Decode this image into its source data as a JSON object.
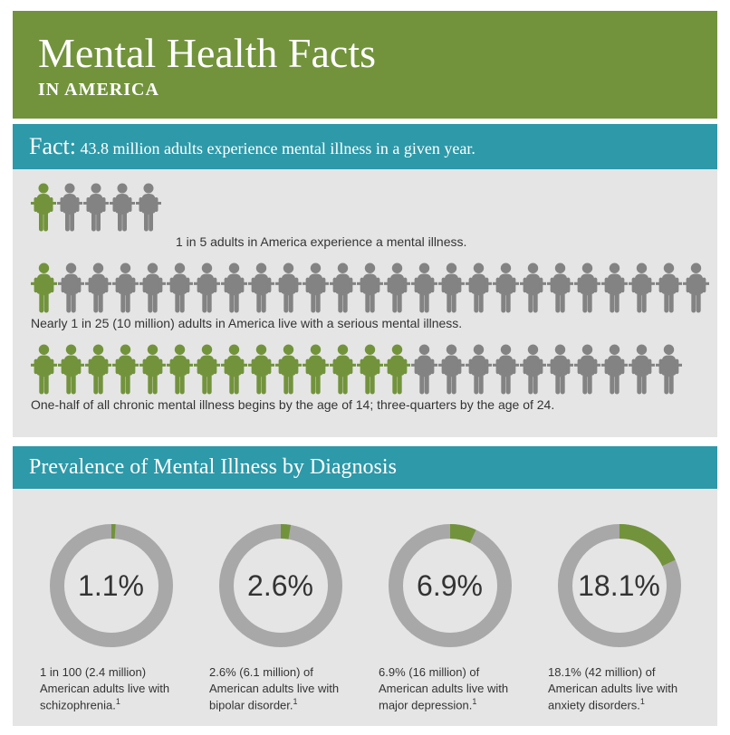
{
  "colors": {
    "green_header": "#72933c",
    "teal": "#2d99a9",
    "gray_panel": "#e5e5e5",
    "person_highlight": "#72933c",
    "person_muted": "#838383",
    "donut_track": "#a8a8a8",
    "donut_fill": "#72933c",
    "text_dark": "#333333",
    "white": "#ffffff"
  },
  "header": {
    "title": "Mental Health Facts",
    "subtitle": "IN AMERICA"
  },
  "fact_bar": {
    "label": "Fact:",
    "text": "43.8 million adults experience mental illness in a given year."
  },
  "rows": [
    {
      "total": 5,
      "highlighted": 1,
      "caption": "1 in 5 adults in America experience a mental illness.",
      "caption_indent": true
    },
    {
      "total": 25,
      "highlighted": 1,
      "caption": "Nearly 1 in 25 (10 million) adults in America live with a serious mental illness.",
      "caption_indent": false
    },
    {
      "total": 24,
      "highlighted": 14,
      "caption": "One-half of all chronic mental illness begins by the age of 14; three-quarters by the age of 24.",
      "caption_indent": false
    }
  ],
  "prevalence": {
    "heading": "Prevalence of Mental Illness by Diagnosis",
    "donut_track_width": 16,
    "items": [
      {
        "percent": 1.1,
        "label": "1.1%",
        "caption": "1 in 100 (2.4 million) American adults live with schizophrenia.",
        "footnote": "1"
      },
      {
        "percent": 2.6,
        "label": "2.6%",
        "caption": "2.6% (6.1 million) of American adults live with bipolar disorder.",
        "footnote": "1"
      },
      {
        "percent": 6.9,
        "label": "6.9%",
        "caption": "6.9% (16 million) of American adults live with major depression.",
        "footnote": "1"
      },
      {
        "percent": 18.1,
        "label": "18.1%",
        "caption": "18.1% (42 million) of American adults live with anxiety disorders.",
        "footnote": "1"
      }
    ]
  }
}
